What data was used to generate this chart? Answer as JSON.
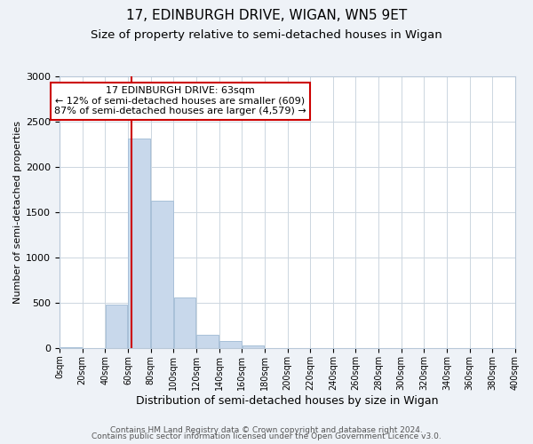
{
  "title": "17, EDINBURGH DRIVE, WIGAN, WN5 9ET",
  "subtitle": "Size of property relative to semi-detached houses in Wigan",
  "xlabel": "Distribution of semi-detached houses by size in Wigan",
  "ylabel": "Number of semi-detached properties",
  "bar_edges": [
    0,
    20,
    40,
    60,
    80,
    100,
    120,
    140,
    160,
    180,
    200,
    220,
    240,
    260,
    280,
    300,
    320,
    340,
    360,
    380,
    400
  ],
  "bar_heights": [
    10,
    0,
    480,
    2320,
    1630,
    560,
    150,
    80,
    30,
    0,
    0,
    0,
    0,
    0,
    0,
    0,
    0,
    0,
    0,
    0
  ],
  "bar_color": "#c8d8eb",
  "bar_edgecolor": "#a8c0d8",
  "property_line_x": 63,
  "property_line_color": "#cc0000",
  "annotation_line1": "17 EDINBURGH DRIVE: 63sqm",
  "annotation_line2": "← 12% of semi-detached houses are smaller (609)",
  "annotation_line3": "87% of semi-detached houses are larger (4,579) →",
  "annotation_box_edgecolor": "#cc0000",
  "annotation_box_facecolor": "#ffffff",
  "ylim": [
    0,
    3000
  ],
  "xlim": [
    0,
    400
  ],
  "yticks": [
    0,
    500,
    1000,
    1500,
    2000,
    2500,
    3000
  ],
  "xtick_labels": [
    "0sqm",
    "20sqm",
    "40sqm",
    "60sqm",
    "80sqm",
    "100sqm",
    "120sqm",
    "140sqm",
    "160sqm",
    "180sqm",
    "200sqm",
    "220sqm",
    "240sqm",
    "260sqm",
    "280sqm",
    "300sqm",
    "320sqm",
    "340sqm",
    "360sqm",
    "380sqm",
    "400sqm"
  ],
  "footer_line1": "Contains HM Land Registry data © Crown copyright and database right 2024.",
  "footer_line2": "Contains public sector information licensed under the Open Government Licence v3.0.",
  "background_color": "#eef2f7",
  "plot_background_color": "#ffffff",
  "grid_color": "#ccd6e0",
  "title_fontsize": 11,
  "subtitle_fontsize": 9.5,
  "xlabel_fontsize": 9,
  "ylabel_fontsize": 8,
  "annotation_fontsize": 8,
  "footer_fontsize": 6.5,
  "ytick_fontsize": 8,
  "xtick_fontsize": 7
}
